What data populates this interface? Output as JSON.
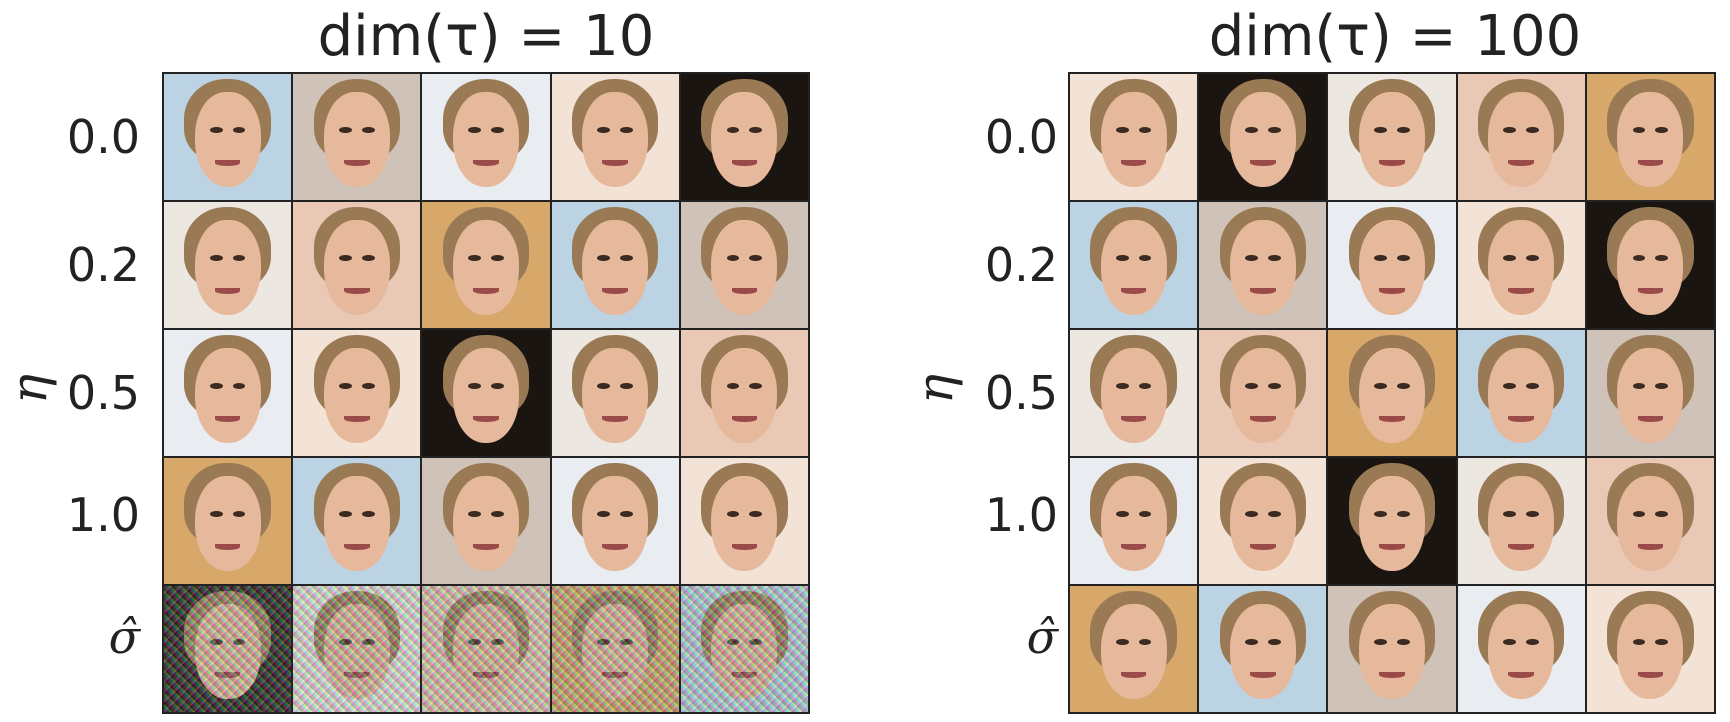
{
  "panels": [
    {
      "title": "dim(τ) = 10",
      "y_axis_label": "η",
      "row_labels": [
        "0.0",
        "0.2",
        "0.5",
        "1.0",
        "σ̂"
      ]
    },
    {
      "title": "dim(τ) = 100",
      "y_axis_label": "η",
      "row_labels": [
        "0.0",
        "0.2",
        "0.5",
        "1.0",
        "σ̂"
      ]
    }
  ],
  "cell_count_per_panel": 25
}
